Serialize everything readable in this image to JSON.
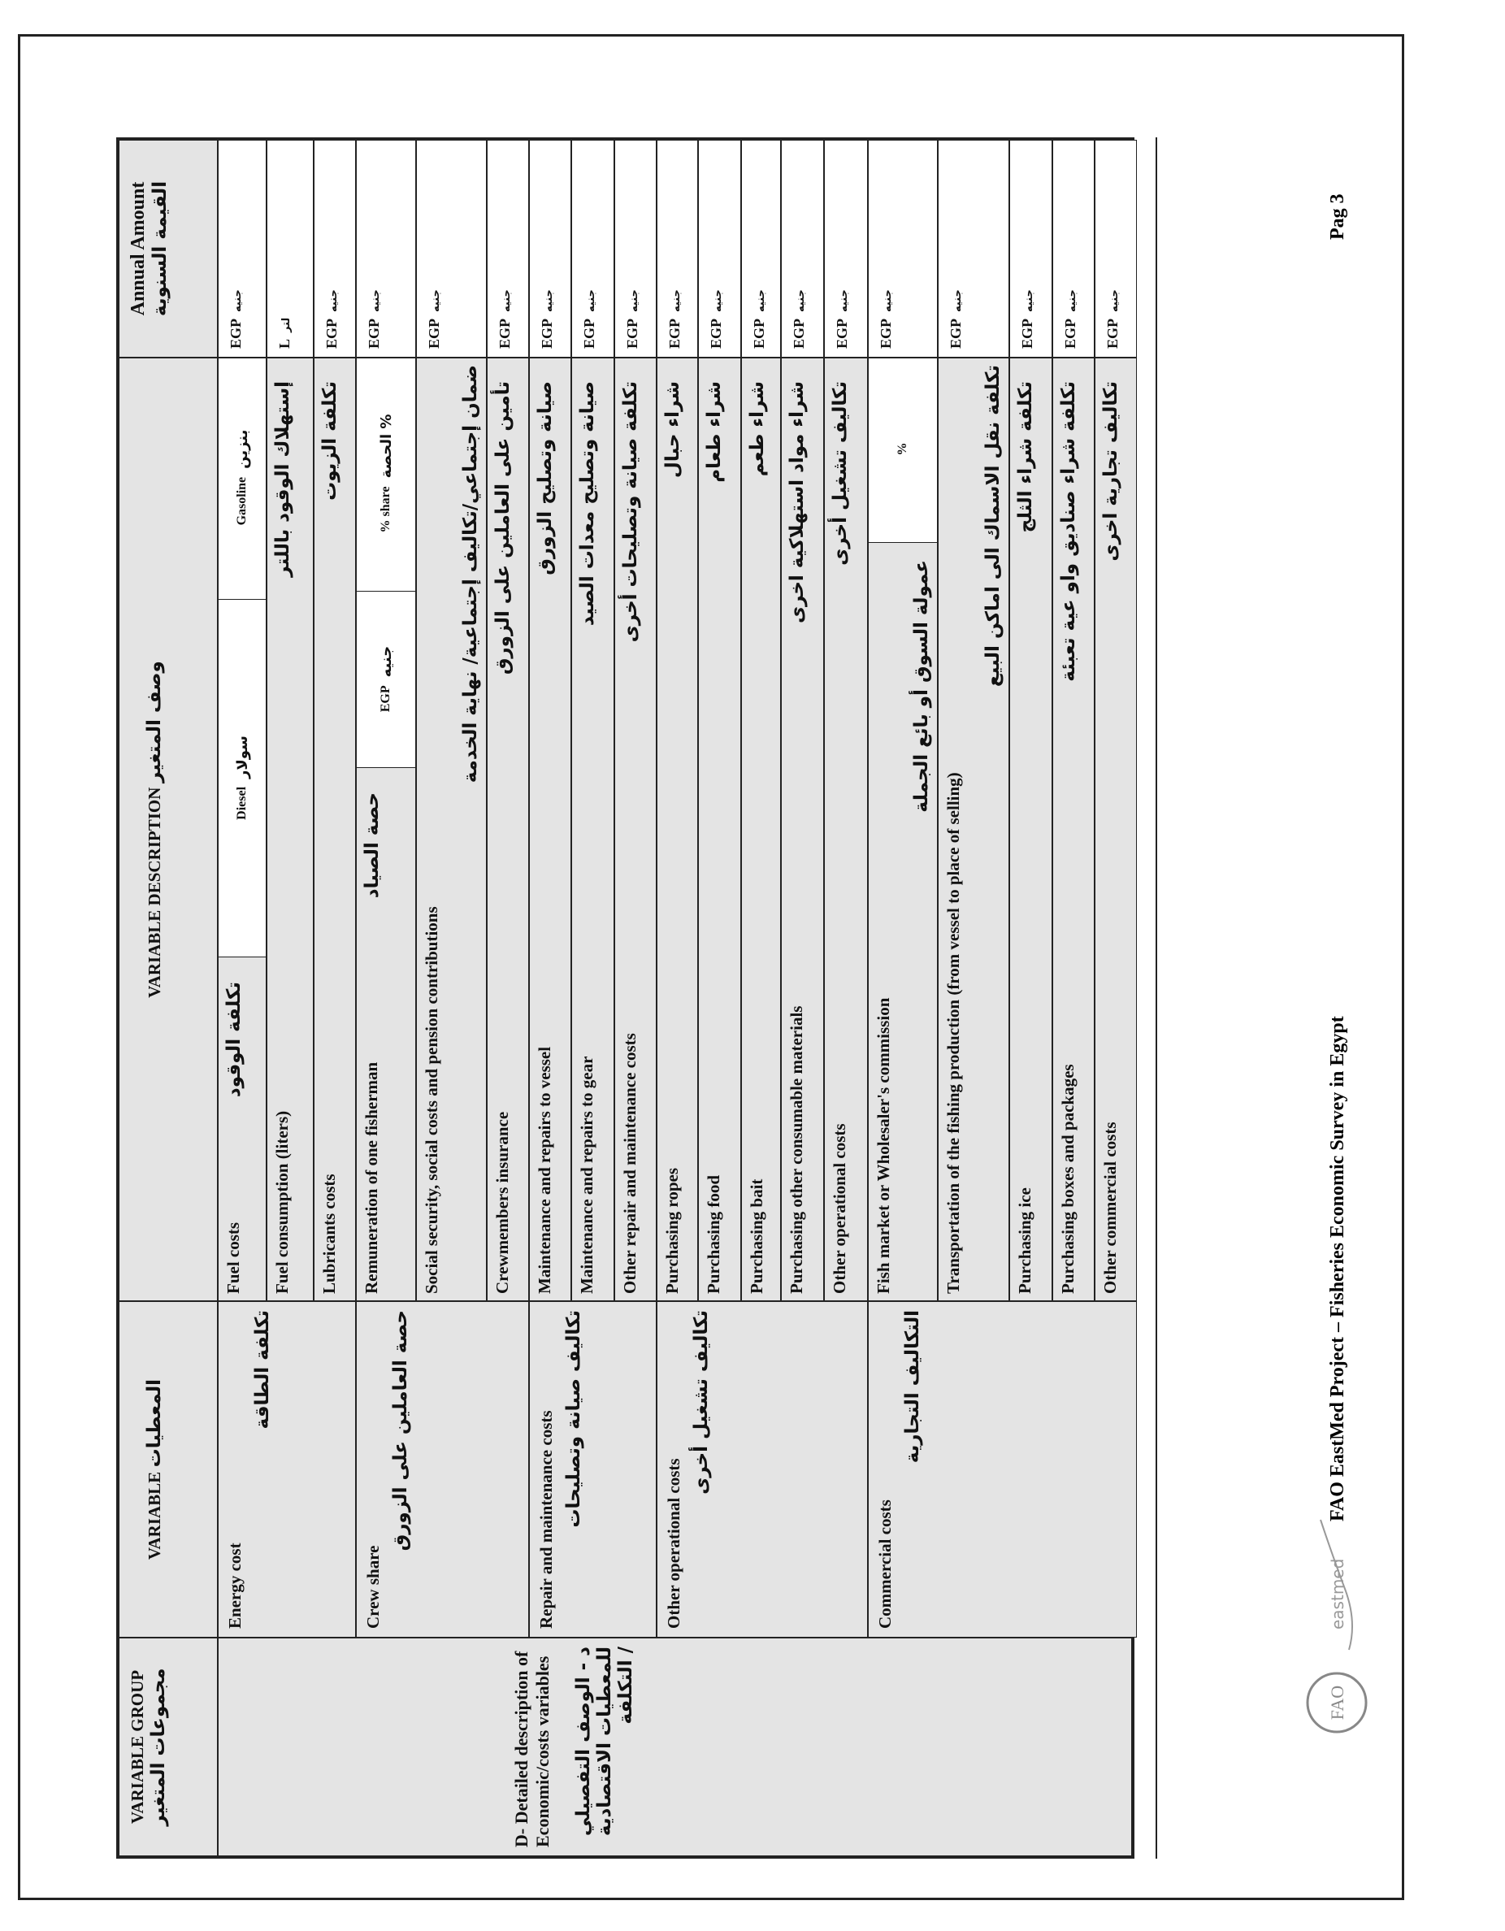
{
  "header": {
    "group_en": "VARIABLE GROUP",
    "group_ar": "مجموعات المتغير",
    "variable_en": "VARIABLE",
    "variable_ar": "المعطيات",
    "description_en": "VARIABLE DESCRIPTION",
    "description_ar": "وصف المتغير",
    "amount_en": "Annual Amount",
    "amount_ar": "القيمة السنوية"
  },
  "group": {
    "en": "D- Detailed description of Economic/costs variables",
    "ar": "د - الوصف التفصيلي للمعطيات الاقتصادية / التكلفة"
  },
  "subgroups": [
    {
      "en": "Energy cost",
      "ar": "تكلفة الطاقة",
      "rows": 3
    },
    {
      "en": "Crew share",
      "ar": "حصة العاملين على الزورق",
      "rows": 3
    },
    {
      "en": "Repair and maintenance costs",
      "ar": "تكاليف صيانة وتصليحات",
      "rows": 3
    },
    {
      "en": "Other operational costs",
      "ar": "تكاليف تشغيل أخرى",
      "rows": 5
    },
    {
      "en": "Commercial costs",
      "ar": "التكاليف التجارية",
      "rows": 5
    }
  ],
  "rows": [
    {
      "en": "Fuel costs",
      "ar": "تكلفة الوقود",
      "boxes": [
        {
          "en": "Diesel",
          "ar": "سولار"
        },
        {
          "en": "Gasoline",
          "ar": "بنزين"
        }
      ],
      "unit_en": "EGP",
      "unit_ar": "جنيه"
    },
    {
      "en": "Fuel consumption (liters)",
      "ar": "إستهلاك الوقود باللتر",
      "unit_en": "L",
      "unit_ar": "لتر"
    },
    {
      "en": "Lubricants costs",
      "ar": "تكلفة الزيوت",
      "unit_en": "EGP",
      "unit_ar": "جنيه"
    },
    {
      "en": "Remuneration of one fisherman",
      "ar": "حصة الصياد",
      "boxes": [
        {
          "en": "EGP",
          "ar": "جنيه"
        },
        {
          "en": "% share",
          "ar": "% الحصة"
        }
      ],
      "unit_en": "EGP",
      "unit_ar": "جنيه"
    },
    {
      "en": "Social security, social costs and pension contributions",
      "ar": "ضمان إجتماعي/تكاليف إجتماعية/ نهاية الخدمة",
      "unit_en": "EGP",
      "unit_ar": "جنيه",
      "stack": true
    },
    {
      "en": "Crewmembers insurance",
      "ar": "تأمين على العاملين على الزورق",
      "unit_en": "EGP",
      "unit_ar": "جنيه"
    },
    {
      "en": "Maintenance and repairs to vessel",
      "ar": "صيانة وتصليح الزورق",
      "unit_en": "EGP",
      "unit_ar": "جنيه"
    },
    {
      "en": "Maintenance and repairs to gear",
      "ar": "صيانة وتصليح معدات الصيد",
      "unit_en": "EGP",
      "unit_ar": "جنيه"
    },
    {
      "en": "Other repair and maintenance costs",
      "ar": "تكلفة صيانة وتصليحات أخرى",
      "unit_en": "EGP",
      "unit_ar": "جنيه"
    },
    {
      "en": "Purchasing ropes",
      "ar": "شراء حبال",
      "unit_en": "EGP",
      "unit_ar": "جنيه"
    },
    {
      "en": "Purchasing food",
      "ar": "شراء طعام",
      "unit_en": "EGP",
      "unit_ar": "جنيه"
    },
    {
      "en": "Purchasing bait",
      "ar": "شراء طعم",
      "unit_en": "EGP",
      "unit_ar": "جنيه"
    },
    {
      "en": "Purchasing other consumable materials",
      "ar": "شراء مواد استهلاكية اخرى",
      "unit_en": "EGP",
      "unit_ar": "جنيه"
    },
    {
      "en": "Other operational costs",
      "ar": "تكاليف تشغيل أخرى",
      "unit_en": "EGP",
      "unit_ar": "جنيه"
    },
    {
      "en": "Fish market or Wholesaler's commission",
      "ar": "عمولة السوق أو بائع الجملة",
      "boxes": [
        {
          "en": "%",
          "ar": ""
        }
      ],
      "unit_en": "EGP",
      "unit_ar": "جنيه",
      "stack": true
    },
    {
      "en": "Transportation of the fishing production (from vessel to place of selling)",
      "ar": "تكلفة نقل الاسماك الى اماكن البيع",
      "unit_en": "EGP",
      "unit_ar": "جنيه",
      "stack": true
    },
    {
      "en": "Purchasing ice",
      "ar": "تكلفة شراء الثلج",
      "unit_en": "EGP",
      "unit_ar": "جنيه"
    },
    {
      "en": "Purchasing boxes and packages",
      "ar": "تكلفة شراء صناديق واو عية تعبئة",
      "unit_en": "EGP",
      "unit_ar": "جنيه"
    },
    {
      "en": "Other commercial costs",
      "ar": "تكاليف تجارية اخرى",
      "unit_en": "EGP",
      "unit_ar": "جنيه"
    }
  ],
  "footer": {
    "project": "FAO EastMed Project – Fisheries Economic Survey in Egypt",
    "page": "Pag 3",
    "logo_fao": "FAO",
    "logo_eastmed": "eastmed"
  }
}
